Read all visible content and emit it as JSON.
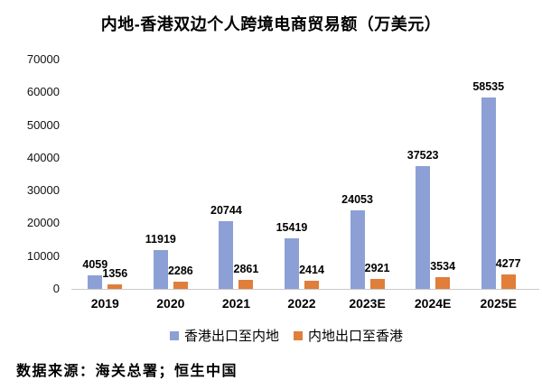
{
  "title": "内地-香港双边个人跨境电商贸易额（万美元）",
  "source_note": "数据来源：海关总署；恒生中国",
  "colors": {
    "series1": "#8CA0D6",
    "series2": "#E07E3A",
    "axis_line": "#C9C9C9",
    "text": "#000000",
    "background": "#FFFFFF"
  },
  "chart_data": {
    "type": "bar",
    "title": "内地-香港双边个人跨境电商贸易额（万美元）",
    "categories": [
      "2019",
      "2020",
      "2021",
      "2022",
      "2023E",
      "2024E",
      "2025E"
    ],
    "series": [
      {
        "name": "香港出口至内地",
        "color": "#8CA0D6",
        "values": [
          4059,
          11919,
          20744,
          15419,
          24053,
          37523,
          58535
        ]
      },
      {
        "name": "内地出口至香港",
        "color": "#E07E3A",
        "values": [
          1356,
          2286,
          2861,
          2414,
          2921,
          3534,
          4277
        ]
      }
    ],
    "xlabel": "",
    "ylabel": "",
    "ylim": [
      0,
      70000
    ],
    "yticks": [
      0,
      10000,
      20000,
      30000,
      40000,
      50000,
      60000,
      70000
    ],
    "grid": false,
    "data_labels": true,
    "legend_position": "bottom"
  }
}
